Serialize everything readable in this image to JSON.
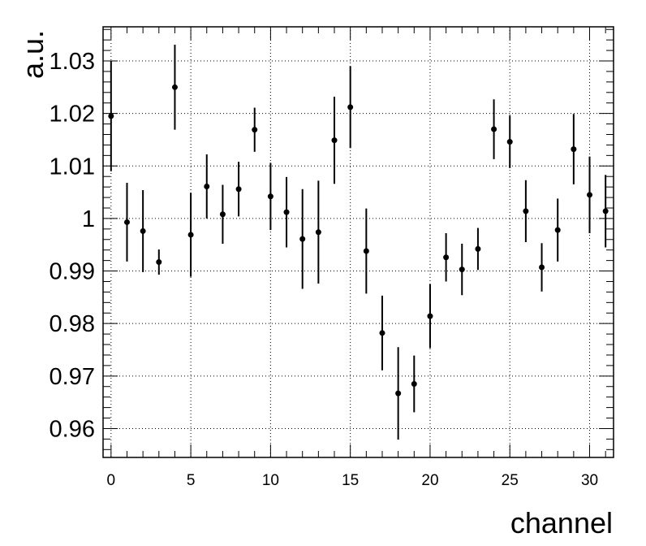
{
  "chart_data": {
    "type": "scatter",
    "title": "",
    "xlabel": "channel",
    "ylabel": "a.u.",
    "xlim": [
      -0.5,
      31.5
    ],
    "ylim": [
      0.9545,
      1.0365
    ],
    "x_ticks": [
      0,
      5,
      10,
      15,
      20,
      25,
      30
    ],
    "x_tick_labels": [
      "0",
      "5",
      "10",
      "15",
      "20",
      "25",
      "30"
    ],
    "y_ticks": [
      0.96,
      0.97,
      0.98,
      0.99,
      1.0,
      1.01,
      1.02,
      1.03
    ],
    "y_tick_labels": [
      "0.96",
      "0.97",
      "0.98",
      "0.99",
      "1",
      "1.01",
      "1.02",
      "1.03"
    ],
    "grid": true,
    "marker_color": "#000000",
    "series": [
      {
        "x": [
          0,
          1,
          2,
          3,
          4,
          5,
          6,
          7,
          8,
          9,
          10,
          11,
          12,
          13,
          14,
          15,
          16,
          17,
          18,
          19,
          20,
          21,
          22,
          23,
          24,
          25,
          26,
          27,
          28,
          29,
          30,
          31
        ],
        "y": [
          1.0195,
          0.9993,
          0.9976,
          0.9917,
          1.025,
          0.9969,
          1.0061,
          1.0008,
          1.0056,
          1.0169,
          1.0042,
          1.0012,
          0.9961,
          0.9974,
          1.0149,
          1.0212,
          0.9938,
          0.9782,
          0.9667,
          0.9685,
          0.9814,
          0.9926,
          0.9903,
          0.9942,
          1.017,
          1.0146,
          1.0014,
          0.9907,
          0.9978,
          1.0132,
          1.0045,
          1.0014
        ],
        "y_err": [
          0.0105,
          0.0075,
          0.0078,
          0.0024,
          0.0081,
          0.008,
          0.0061,
          0.0056,
          0.0052,
          0.0042,
          0.0064,
          0.0067,
          0.0095,
          0.0098,
          0.0083,
          0.0078,
          0.0081,
          0.0071,
          0.0088,
          0.0054,
          0.0061,
          0.0046,
          0.0049,
          0.004,
          0.0057,
          0.005,
          0.0059,
          0.0046,
          0.006,
          0.0067,
          0.0073,
          0.0069
        ]
      }
    ]
  }
}
